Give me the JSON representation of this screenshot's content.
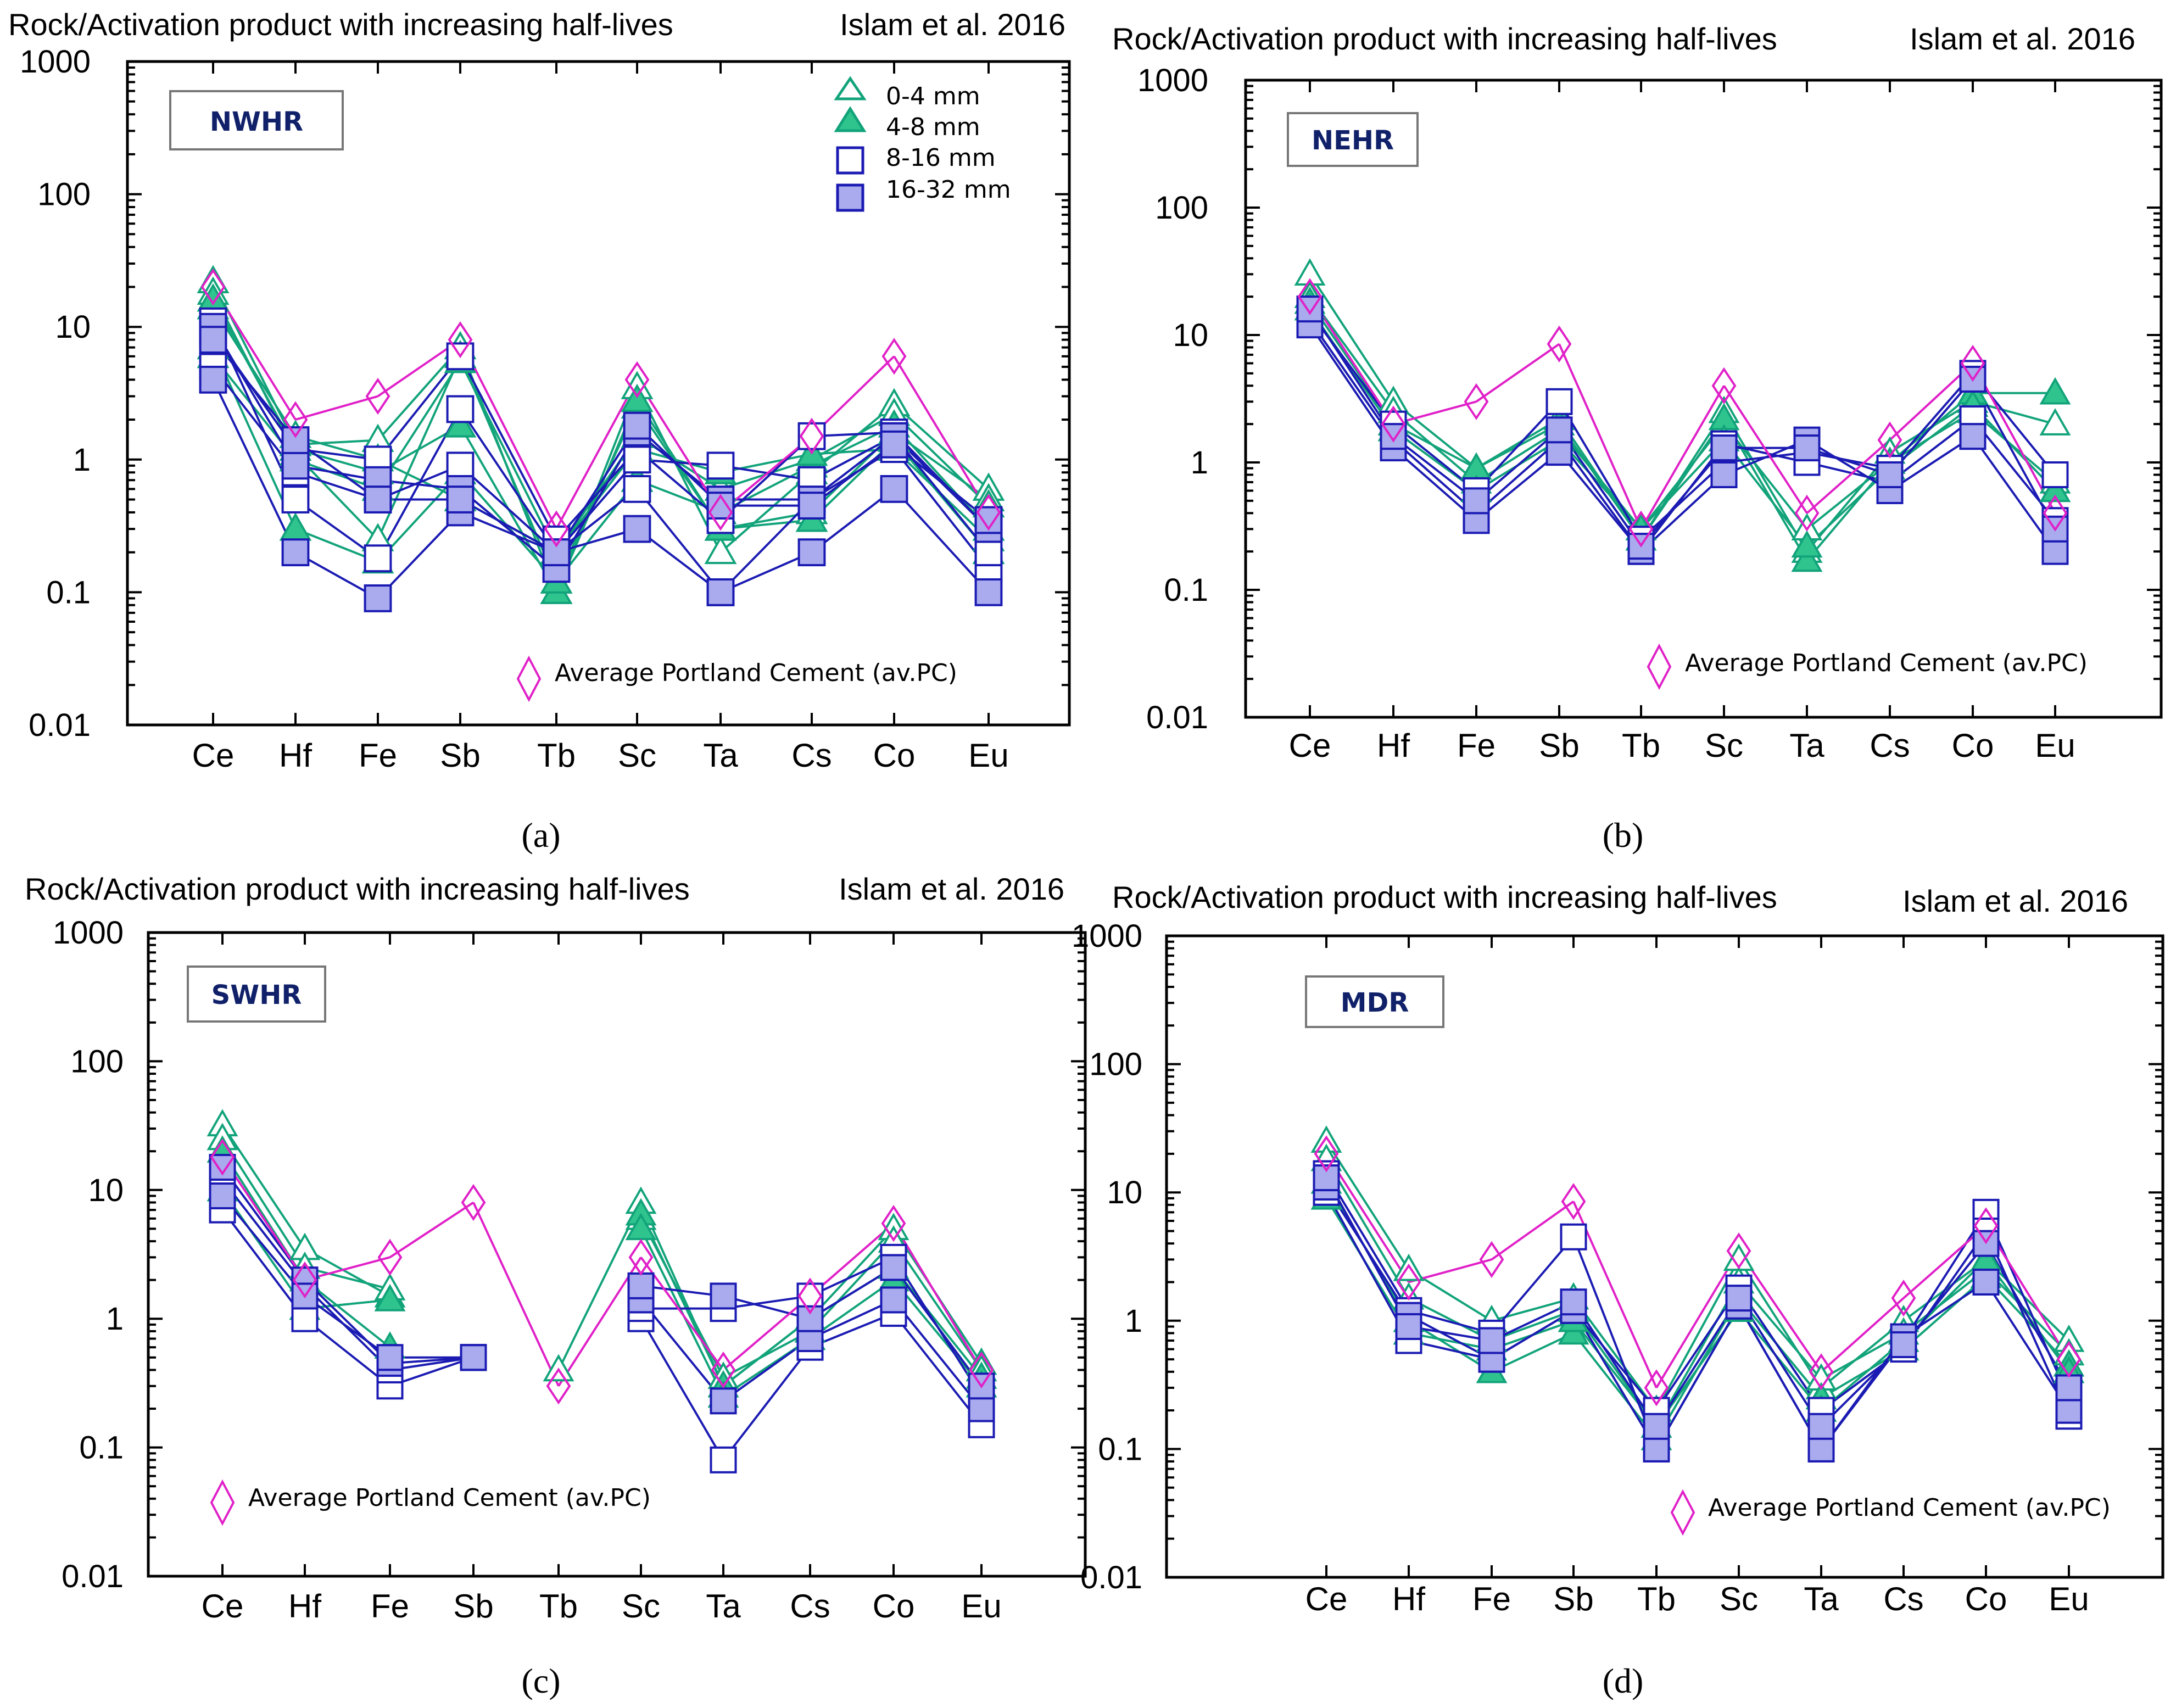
{
  "colors": {
    "green": "#12a37a",
    "green_fill": "#2fc48e",
    "blue": "#1b1bb3",
    "blue_fill": "#a9abee",
    "magenta": "#e020c8",
    "axis": "#000000",
    "label_box_text": "#10216a"
  },
  "legend_size_classes": [
    "0-4 mm",
    "4-8 mm",
    "8-16 mm",
    "16-32 mm"
  ],
  "chart_data": [
    {
      "id": "a",
      "type": "line",
      "yscale": "log",
      "title": "Rock/Activation product with increasing half-lives",
      "source": "Islam et al. 2016",
      "label": "NWHR",
      "caption": "(a)",
      "pc_legend": "Average Portland Cement (av.PC)",
      "categories": [
        "Ce",
        "Hf",
        "Fe",
        "Sb",
        "Tb",
        "Sc",
        "Ta",
        "Cs",
        "Co",
        "Eu"
      ],
      "yticks": [
        "1000",
        "100",
        "10",
        "1",
        "0.1",
        "0.01"
      ],
      "ylim": [
        0.01,
        1000
      ],
      "pc": [
        20,
        2,
        3,
        8,
        0.3,
        4,
        0.4,
        1.5,
        6,
        0.4
      ],
      "series": [
        {
          "name": "0-4 mm a",
          "values": [
            22,
            1.3,
            1.4,
            7,
            0.1,
            3.5,
            0.2,
            0.8,
            2.6,
            0.6
          ]
        },
        {
          "name": "0-4 mm b",
          "values": [
            18,
            1.1,
            0.25,
            6,
            0.12,
            2.5,
            0.3,
            0.4,
            1.6,
            0.5
          ]
        },
        {
          "name": "0-4 mm c",
          "values": [
            14,
            1.5,
            1.0,
            0.5,
            0.2,
            1.5,
            0.6,
            1.0,
            2.2,
            0.45
          ]
        },
        {
          "name": "4-8 mm a",
          "values": [
            16,
            1.2,
            0.8,
            1.8,
            0.1,
            2.8,
            0.3,
            0.35,
            1.4,
            0.2
          ]
        },
        {
          "name": "4-8 mm b",
          "values": [
            7,
            0.3,
            0.17,
            0.8,
            0.12,
            0.7,
            0.4,
            0.9,
            1.8,
            0.3
          ]
        },
        {
          "name": "4-8 mm c",
          "values": [
            6,
            1.0,
            0.6,
            5.5,
            0.2,
            1.2,
            0.8,
            1.1,
            1.2,
            0.25
          ]
        },
        {
          "name": "8-16 mm a",
          "values": [
            11,
            0.5,
            0.18,
            2.4,
            0.2,
            0.6,
            0.1,
            0.5,
            1.2,
            0.15
          ]
        },
        {
          "name": "8-16 mm b",
          "values": [
            9,
            1.2,
            1.0,
            6,
            0.25,
            1.2,
            0.35,
            1.5,
            1.6,
            0.3
          ]
        },
        {
          "name": "8-16 mm c",
          "values": [
            5,
            0.8,
            0.5,
            0.9,
            0.2,
            1.0,
            0.9,
            0.7,
            1.5,
            0.2
          ]
        },
        {
          "name": "16-32 mm a",
          "values": [
            4,
            0.2,
            0.09,
            0.4,
            0.2,
            0.3,
            0.1,
            0.2,
            0.6,
            0.1
          ]
        },
        {
          "name": "16-32 mm b",
          "values": [
            10,
            0.9,
            0.7,
            0.6,
            0.15,
            1.6,
            0.5,
            0.5,
            1.5,
            0.3
          ]
        },
        {
          "name": "16-32 mm c",
          "values": [
            8,
            1.4,
            0.5,
            0.5,
            0.2,
            1.8,
            0.45,
            0.45,
            1.3,
            0.35
          ]
        }
      ]
    },
    {
      "id": "b",
      "type": "line",
      "yscale": "log",
      "title": "Rock/Activation product with increasing half-lives",
      "source": "Islam et al. 2016",
      "label": "NEHR",
      "caption": "(b)",
      "pc_legend": "Average Portland Cement (av.PC)",
      "categories": [
        "Ce",
        "Hf",
        "Fe",
        "Sb",
        "Tb",
        "Sc",
        "Ta",
        "Cs",
        "Co",
        "Eu"
      ],
      "yticks": [
        "1000",
        "100",
        "10",
        "1",
        "0.1",
        "0.01"
      ],
      "ylim": [
        0.01,
        1000
      ],
      "pc": [
        20,
        2,
        3,
        8.5,
        0.3,
        4,
        0.4,
        1.5,
        6,
        0.4
      ],
      "series": [
        {
          "name": "0-4 mm a",
          "values": [
            30,
            3,
            0.9,
            2.2,
            0.25,
            2.5,
            0.2,
            1.2,
            3,
            2
          ]
        },
        {
          "name": "0-4 mm b",
          "values": [
            20,
            2.5,
            0.7,
            1.8,
            0.3,
            2.0,
            0.3,
            1.0,
            2.5,
            0.7
          ]
        },
        {
          "name": "4-8 mm a",
          "values": [
            18,
            2.0,
            0.9,
            2.0,
            0.25,
            2.2,
            0.17,
            1.0,
            3.5,
            3.5
          ]
        },
        {
          "name": "4-8 mm b",
          "values": [
            16,
            1.8,
            0.6,
            1.5,
            0.3,
            1.5,
            0.22,
            0.9,
            2.8,
            0.6
          ]
        },
        {
          "name": "8-16 mm a",
          "values": [
            15,
            2.0,
            0.6,
            3,
            0.25,
            1.0,
            1.2,
            0.9,
            5,
            0.8
          ]
        },
        {
          "name": "8-16 mm b",
          "values": [
            13,
            1.5,
            0.4,
            1.5,
            0.2,
            1.4,
            1.0,
            0.7,
            2.2,
            0.35
          ]
        },
        {
          "name": "16-32 mm a",
          "values": [
            12,
            1.3,
            0.35,
            1.2,
            0.2,
            0.8,
            1.5,
            0.6,
            1.6,
            0.2
          ]
        },
        {
          "name": "16-32 mm b",
          "values": [
            16,
            1.6,
            0.5,
            1.8,
            0.22,
            1.3,
            1.3,
            0.8,
            4.5,
            0.3
          ]
        }
      ]
    },
    {
      "id": "c",
      "type": "line",
      "yscale": "log",
      "title": "Rock/Activation product with increasing half-lives",
      "source": "Islam et al. 2016",
      "label": "SWHR",
      "caption": "(c)",
      "pc_legend": "Average Portland Cement (av.PC)",
      "categories": [
        "Ce",
        "Hf",
        "Fe",
        "Sb",
        "Tb",
        "Sc",
        "Ta",
        "Cs",
        "Co",
        "Eu"
      ],
      "yticks": [
        "1000",
        "100",
        "10",
        "1",
        "0.1",
        "0.01"
      ],
      "ylim": [
        0.01,
        1000
      ],
      "pc": [
        18,
        2,
        3,
        8,
        0.3,
        3,
        0.4,
        1.5,
        5.5,
        0.4
      ],
      "series": [
        {
          "name": "0-4 mm a",
          "values": [
            32,
            3.5,
            1.5,
            null,
            0.4,
            8,
            0.3,
            1.0,
            5,
            0.45
          ]
        },
        {
          "name": "0-4 mm b",
          "values": [
            25,
            2.5,
            1.7,
            null,
            null,
            6,
            0.35,
            0.8,
            4,
            0.4
          ]
        },
        {
          "name": "4-8 mm a",
          "values": [
            20,
            2.0,
            0.6,
            null,
            null,
            6.5,
            0.3,
            1.0,
            2.5,
            0.35
          ]
        },
        {
          "name": "4-8 mm b",
          "values": [
            10,
            1.2,
            1.4,
            null,
            null,
            5,
            0.25,
            0.7,
            2.0,
            0.3
          ]
        },
        {
          "name": "8-16 mm a",
          "values": [
            7,
            1.0,
            0.3,
            0.5,
            null,
            1.0,
            0.08,
            0.6,
            1.1,
            0.15
          ]
        },
        {
          "name": "8-16 mm b",
          "values": [
            12,
            1.8,
            0.4,
            0.5,
            null,
            1.2,
            1.2,
            1.5,
            3,
            0.25
          ]
        },
        {
          "name": "16-32 mm a",
          "values": [
            15,
            2.0,
            0.45,
            0.5,
            null,
            1.4,
            0.23,
            0.7,
            1.4,
            0.2
          ]
        },
        {
          "name": "16-32 mm b",
          "values": [
            9,
            1.5,
            0.5,
            0.5,
            null,
            1.8,
            1.5,
            1.0,
            2.5,
            0.3
          ]
        }
      ]
    },
    {
      "id": "d",
      "type": "line",
      "yscale": "log",
      "title": "Rock/Activation product with increasing half-lives",
      "source": "Islam et al. 2016",
      "label": "MDR",
      "caption": "(d)",
      "pc_legend": "Average Portland Cement (av.PC)",
      "categories": [
        "Ce",
        "Hf",
        "Fe",
        "Sb",
        "Tb",
        "Sc",
        "Ta",
        "Cs",
        "Co",
        "Eu"
      ],
      "yticks": [
        "1000",
        "100",
        "10",
        "1",
        "0.1",
        "0.01"
      ],
      "ylim": [
        0.01,
        1000
      ],
      "pc": [
        20,
        2,
        3,
        8.5,
        0.3,
        3.5,
        0.4,
        1.5,
        5.5,
        0.5
      ],
      "series": [
        {
          "name": "0-4 mm a",
          "values": [
            25,
            2.5,
            1.0,
            1.5,
            0.2,
            3,
            0.3,
            1.0,
            3,
            0.7
          ]
        },
        {
          "name": "0-4 mm b",
          "values": [
            18,
            1.5,
            0.7,
            1.2,
            0.15,
            2,
            0.35,
            0.8,
            2.5,
            0.55
          ]
        },
        {
          "name": "4-8 mm a",
          "values": [
            12,
            1.0,
            0.4,
            0.8,
            0.12,
            1.5,
            0.25,
            0.6,
            2.2,
            0.45
          ]
        },
        {
          "name": "4-8 mm b",
          "values": [
            9,
            0.8,
            0.6,
            1.0,
            0.15,
            1.2,
            0.2,
            0.7,
            3,
            0.4
          ]
        },
        {
          "name": "8-16 mm a",
          "values": [
            14,
            1.2,
            0.8,
            4.5,
            0.1,
            1.3,
            0.1,
            0.7,
            7,
            0.25
          ]
        },
        {
          "name": "8-16 mm b",
          "values": [
            10,
            0.7,
            0.5,
            1.2,
            0.2,
            1.8,
            0.2,
            0.6,
            5,
            0.18
          ]
        },
        {
          "name": "16-32 mm a",
          "values": [
            11,
            1.1,
            0.5,
            1.2,
            0.1,
            1.3,
            0.1,
            0.75,
            2.0,
            0.2
          ]
        },
        {
          "name": "16-32 mm b",
          "values": [
            13,
            0.9,
            0.7,
            1.4,
            0.15,
            1.5,
            0.15,
            0.65,
            4,
            0.3
          ]
        }
      ]
    }
  ]
}
